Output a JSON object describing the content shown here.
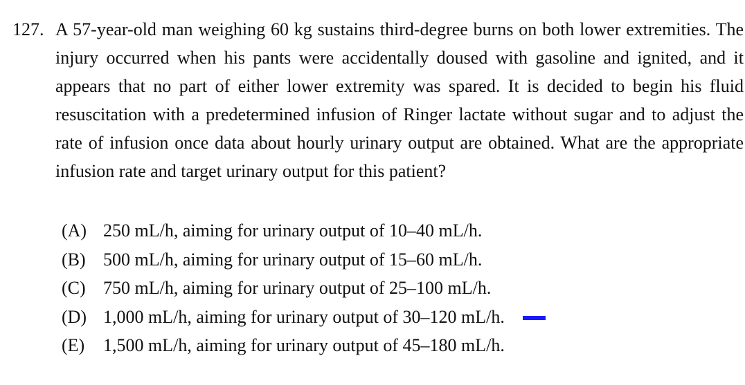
{
  "question": {
    "number": "127.",
    "stem": "A 57-year-old man weighing 60 kg sustains third-degree burns on both lower extremities. The injury occurred when his pants were accidentally doused with gasoline and ignited, and it appears that no part of either lower extremity was spared. It is decided to begin his fluid resuscitation with a predetermined infusion of Ringer lactate without sugar and to adjust the rate of infusion once data about hourly urinary output are obtained. What are the appropriate infusion rate and target urinary output for this patient?"
  },
  "options": [
    {
      "letter": "(A)",
      "text": "250 mL/h, aiming for urinary output of 10–40 mL/h."
    },
    {
      "letter": "(B)",
      "text": "500 mL/h, aiming for urinary output of 15–60 mL/h."
    },
    {
      "letter": "(C)",
      "text": "750 mL/h, aiming for urinary output of 25–100 mL/h."
    },
    {
      "letter": "(D)",
      "text": "1,000 mL/h, aiming for urinary output of 30–120 mL/h."
    },
    {
      "letter": "(E)",
      "text": "1,500 mL/h, aiming for urinary output of 45–180 mL/h."
    }
  ],
  "answer_marker": {
    "marked_option": "(D)",
    "color": "#1a1aff"
  }
}
